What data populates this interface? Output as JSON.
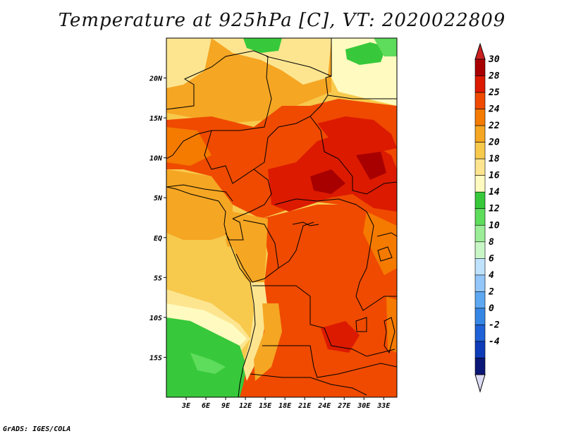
{
  "title": "Temperature at 925hPa [C], VT: 2020022809",
  "credit": "GrADS: IGES/COLA",
  "map": {
    "lat_labels": [
      "20N",
      "15N",
      "10N",
      "5N",
      "EQ",
      "5S",
      "10S",
      "15S"
    ],
    "lat_values": [
      20,
      15,
      10,
      5,
      0,
      -5,
      -10,
      -15
    ],
    "lon_labels": [
      "3E",
      "6E",
      "9E",
      "12E",
      "15E",
      "18E",
      "21E",
      "24E",
      "27E",
      "30E",
      "33E"
    ],
    "lon_values": [
      3,
      6,
      9,
      12,
      15,
      18,
      21,
      24,
      27,
      30,
      33
    ],
    "lon_range": [
      0,
      35
    ],
    "lat_range": [
      -20,
      25
    ]
  },
  "colorbar": {
    "labels": [
      "30",
      "28",
      "25",
      "24",
      "22",
      "20",
      "18",
      "16",
      "14",
      "12",
      "10",
      "8",
      "6",
      "4",
      "2",
      "0",
      "-2",
      "-4"
    ],
    "colors": [
      "#a80000",
      "#dc1a00",
      "#ef4a00",
      "#f57a00",
      "#f5a623",
      "#f7c94d",
      "#fde590",
      "#fffbc0",
      "#37c93b",
      "#5edc5c",
      "#9bed98",
      "#c9f6c6",
      "#bfe3ff",
      "#93c6f9",
      "#5ea8f2",
      "#3686e6",
      "#1f61d6",
      "#0e3bb8",
      "#0a1776"
    ],
    "min_cap_color": "#dcdcf5",
    "max_cap_color": "#cc2020"
  }
}
